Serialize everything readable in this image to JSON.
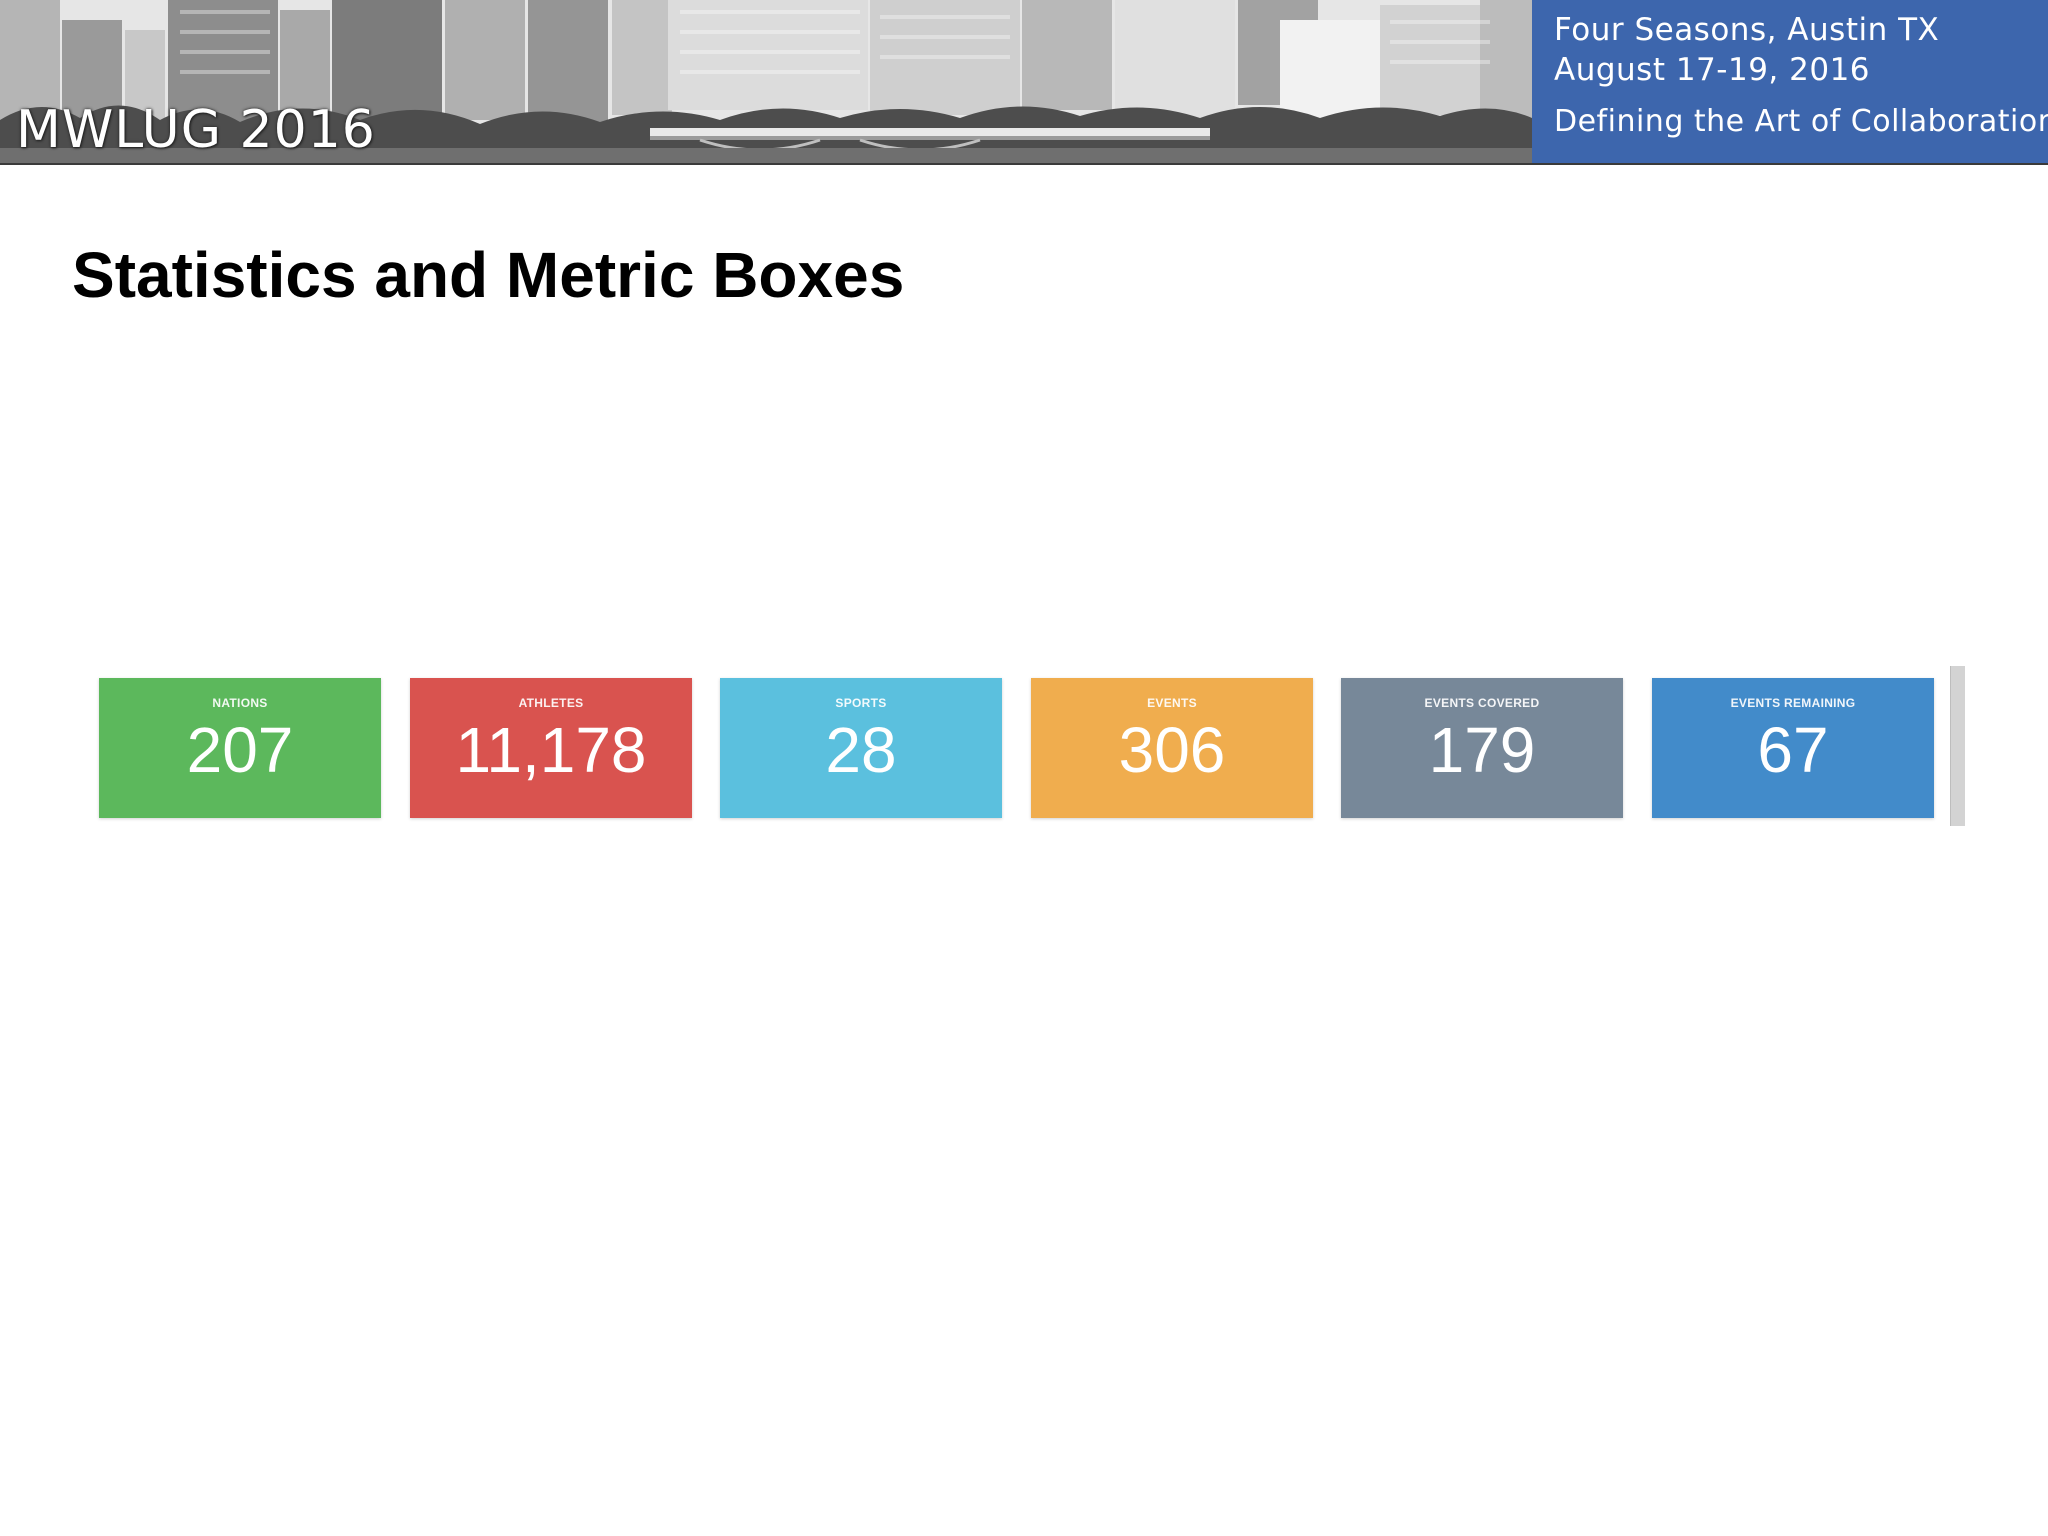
{
  "header": {
    "conference_name": "MWLUG 2016",
    "location": "Four Seasons, Austin TX",
    "dates": "August 17-19, 2016",
    "tagline": "Defining the Art of Collaboration",
    "accent_color": "#3d66ad"
  },
  "slide": {
    "title": "Statistics and Metric Boxes"
  },
  "metrics": [
    {
      "label": "NATIONS",
      "value": "207",
      "color": "#5cb85c"
    },
    {
      "label": "ATHLETES",
      "value": "11,178",
      "color": "#d9534f"
    },
    {
      "label": "SPORTS",
      "value": "28",
      "color": "#5bc0de"
    },
    {
      "label": "EVENTS",
      "value": "306",
      "color": "#f0ad4e"
    },
    {
      "label": "EVENTS COVERED",
      "value": "179",
      "color": "#778899"
    },
    {
      "label": "EVENTS REMAINING",
      "value": "67",
      "color": "#428bca"
    }
  ]
}
